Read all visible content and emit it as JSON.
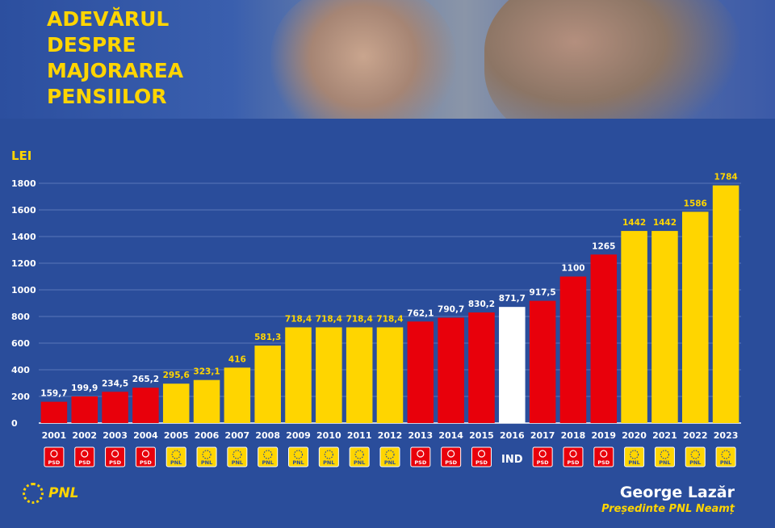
{
  "header": {
    "title_lines": [
      "ADEVĂRUL",
      "DESPRE",
      "MAJORAREA",
      "PENSIILOR"
    ]
  },
  "colors": {
    "background": "#2a4d9b",
    "pnl": "#ffd500",
    "psd": "#e8000b",
    "ind": "#ffffff",
    "text_accent": "#ffd500"
  },
  "chart_data": {
    "type": "bar",
    "ylabel": "LEI",
    "ylim": [
      0,
      1800
    ],
    "yticks": [
      0,
      200,
      400,
      600,
      800,
      1000,
      1200,
      1400,
      1600,
      1800
    ],
    "grid": true,
    "categories": [
      "2001",
      "2002",
      "2003",
      "2004",
      "2005",
      "2006",
      "2007",
      "2008",
      "2009",
      "2010",
      "2011",
      "2012",
      "2013",
      "2014",
      "2015",
      "2016",
      "2017",
      "2018",
      "2019",
      "2020",
      "2021",
      "2022",
      "2023"
    ],
    "values": [
      159.7,
      199.9,
      234.5,
      265.2,
      295.6,
      323.1,
      416,
      581.3,
      718.4,
      718.4,
      718.4,
      718.4,
      762.1,
      790.7,
      830.2,
      871.7,
      917.5,
      1100,
      1265,
      1442,
      1442,
      1586,
      1784
    ],
    "value_labels": [
      "159,7",
      "199,9",
      "234,5",
      "265,2",
      "295,6",
      "323,1",
      "416",
      "581,3",
      "718,4",
      "718,4",
      "718,4",
      "718,4",
      "762,1",
      "790,7",
      "830,2",
      "871,7",
      "917,5",
      "1100",
      "1265",
      "1442",
      "1442",
      "1586",
      "1784"
    ],
    "parties": [
      "PSD",
      "PSD",
      "PSD",
      "PSD",
      "PNL",
      "PNL",
      "PNL",
      "PNL",
      "PNL",
      "PNL",
      "PNL",
      "PNL",
      "PSD",
      "PSD",
      "PSD",
      "IND",
      "PSD",
      "PSD",
      "PSD",
      "PNL",
      "PNL",
      "PNL",
      "PNL"
    ]
  },
  "footer": {
    "logo_text": "PNL",
    "name": "George Lazăr",
    "role": "Președinte PNL Neamț"
  }
}
